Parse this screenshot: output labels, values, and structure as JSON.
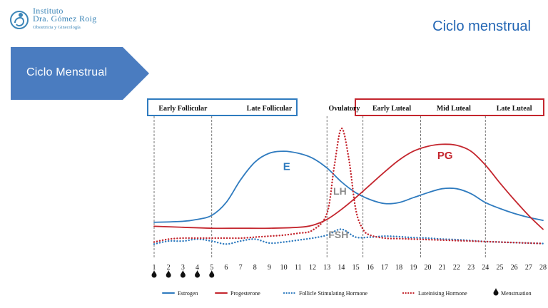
{
  "header": {
    "logo_line1": "Instituto",
    "logo_line2": "Dra. Gómez Roig",
    "logo_line3": "Obstetricia y Ginecología",
    "page_title": "Ciclo menstrual"
  },
  "section_tab": {
    "label": "Ciclo Menstrual"
  },
  "colors": {
    "estrogen": "#2f7bbf",
    "progesterone": "#c4262e",
    "fsh": "#2f7bbf",
    "lh": "#c4262e",
    "title": "#2366b4",
    "tab": "#4a7cc0"
  },
  "chart_data": {
    "type": "line",
    "x_ticks": [
      1,
      2,
      3,
      4,
      5,
      6,
      7,
      8,
      9,
      10,
      11,
      12,
      13,
      14,
      15,
      16,
      17,
      18,
      19,
      20,
      21,
      22,
      23,
      24,
      25,
      26,
      27,
      28
    ],
    "phase_dividers": [
      1,
      5,
      13,
      15.5,
      19.5,
      24
    ],
    "phases_follicular": [
      {
        "label": "Early Follicular",
        "center": 3
      },
      {
        "label": "Late Follicular",
        "center": 9
      }
    ],
    "phase_ovulatory": {
      "label": "Ovulatory",
      "center": 14.2
    },
    "phases_luteal": [
      {
        "label": "Early Luteal",
        "center": 17.5
      },
      {
        "label": "Mid Luteal",
        "center": 21.8
      },
      {
        "label": "Late Luteal",
        "center": 26
      }
    ],
    "curve_labels": {
      "E": {
        "text": "E",
        "x": 10.2,
        "y": 8.2
      },
      "PG": {
        "text": "PG",
        "x": 21.2,
        "y": 9.3
      },
      "LH": {
        "text": "LH",
        "x": 13.9,
        "y": 5.7
      },
      "FSH": {
        "text": "FSH",
        "x": 13.8,
        "y": 1.3
      }
    },
    "series": [
      {
        "name": "Estrogen",
        "key": "estrogen",
        "style": "solid",
        "x": [
          1,
          3,
          4,
          5,
          6,
          7,
          8,
          9,
          10,
          11,
          12,
          13,
          14,
          15,
          16,
          17,
          18,
          19,
          20,
          21,
          22,
          23,
          24,
          25,
          26,
          27,
          28
        ],
        "y": [
          2.9,
          3.0,
          3.2,
          3.6,
          4.9,
          7.2,
          9.0,
          9.9,
          10.1,
          9.9,
          9.4,
          8.4,
          7.0,
          5.9,
          5.2,
          4.8,
          4.9,
          5.4,
          5.9,
          6.3,
          6.3,
          5.8,
          4.9,
          4.3,
          3.8,
          3.4,
          3.1
        ]
      },
      {
        "name": "Progesterone",
        "key": "progesterone",
        "style": "solid",
        "x": [
          1,
          3,
          5,
          7,
          9,
          11,
          12,
          13,
          14,
          15,
          16,
          17,
          18,
          19,
          20,
          21,
          22,
          23,
          24,
          25,
          26,
          27,
          28
        ],
        "y": [
          2.5,
          2.4,
          2.3,
          2.3,
          2.3,
          2.4,
          2.6,
          3.2,
          4.2,
          5.4,
          6.7,
          8.0,
          9.2,
          10.1,
          10.6,
          10.8,
          10.7,
          10.1,
          8.7,
          6.9,
          5.2,
          3.6,
          2.2
        ]
      },
      {
        "name": "Follicle Stimulating Hormone",
        "key": "fsh",
        "style": "dotted",
        "x": [
          1,
          2,
          3,
          4,
          5,
          6,
          7,
          8,
          9,
          10,
          11,
          12,
          13,
          14,
          15,
          16,
          17,
          18,
          19,
          20,
          21,
          22,
          23,
          24,
          25,
          26,
          27,
          28
        ],
        "y": [
          0.7,
          1.0,
          1.0,
          1.2,
          1.0,
          0.7,
          1.0,
          1.2,
          0.8,
          0.9,
          1.1,
          1.3,
          1.6,
          2.2,
          1.4,
          1.4,
          1.5,
          1.45,
          1.35,
          1.3,
          1.2,
          1.15,
          1.05,
          0.95,
          0.9,
          0.85,
          0.8,
          0.75
        ]
      },
      {
        "name": "Luteinising Hormone",
        "key": "lh",
        "style": "dotted",
        "x": [
          1,
          2,
          3,
          4,
          5,
          6,
          7,
          8,
          9,
          10,
          11,
          12,
          13,
          13.5,
          14,
          14.5,
          15,
          15.5,
          16,
          17,
          18,
          19,
          20,
          21,
          22,
          23,
          24,
          25,
          26,
          27,
          28
        ],
        "y": [
          0.9,
          1.2,
          1.3,
          1.3,
          1.3,
          1.3,
          1.3,
          1.4,
          1.5,
          1.6,
          1.8,
          2.1,
          3.8,
          8.5,
          12.4,
          9.5,
          4.2,
          2.2,
          1.6,
          1.3,
          1.25,
          1.2,
          1.15,
          1.1,
          1.05,
          1.0,
          0.95,
          0.9,
          0.85,
          0.8,
          0.75
        ]
      }
    ],
    "menstruation_days": [
      1,
      2,
      3,
      4,
      5
    ],
    "legend": [
      {
        "label": "Estrogen",
        "key": "estrogen",
        "style": "solid"
      },
      {
        "label": "Progesterone",
        "key": "progesterone",
        "style": "solid"
      },
      {
        "label": "Follicle Stimulating Hormone",
        "key": "fsh",
        "style": "dotted"
      },
      {
        "label": "Luteinising Hormone",
        "key": "lh",
        "style": "dotted"
      },
      {
        "label": "Menstruation",
        "key": "menstruation",
        "style": "drop"
      }
    ],
    "legend_position": "bottom",
    "grid": false,
    "ylim": [
      0,
      13.5
    ]
  }
}
